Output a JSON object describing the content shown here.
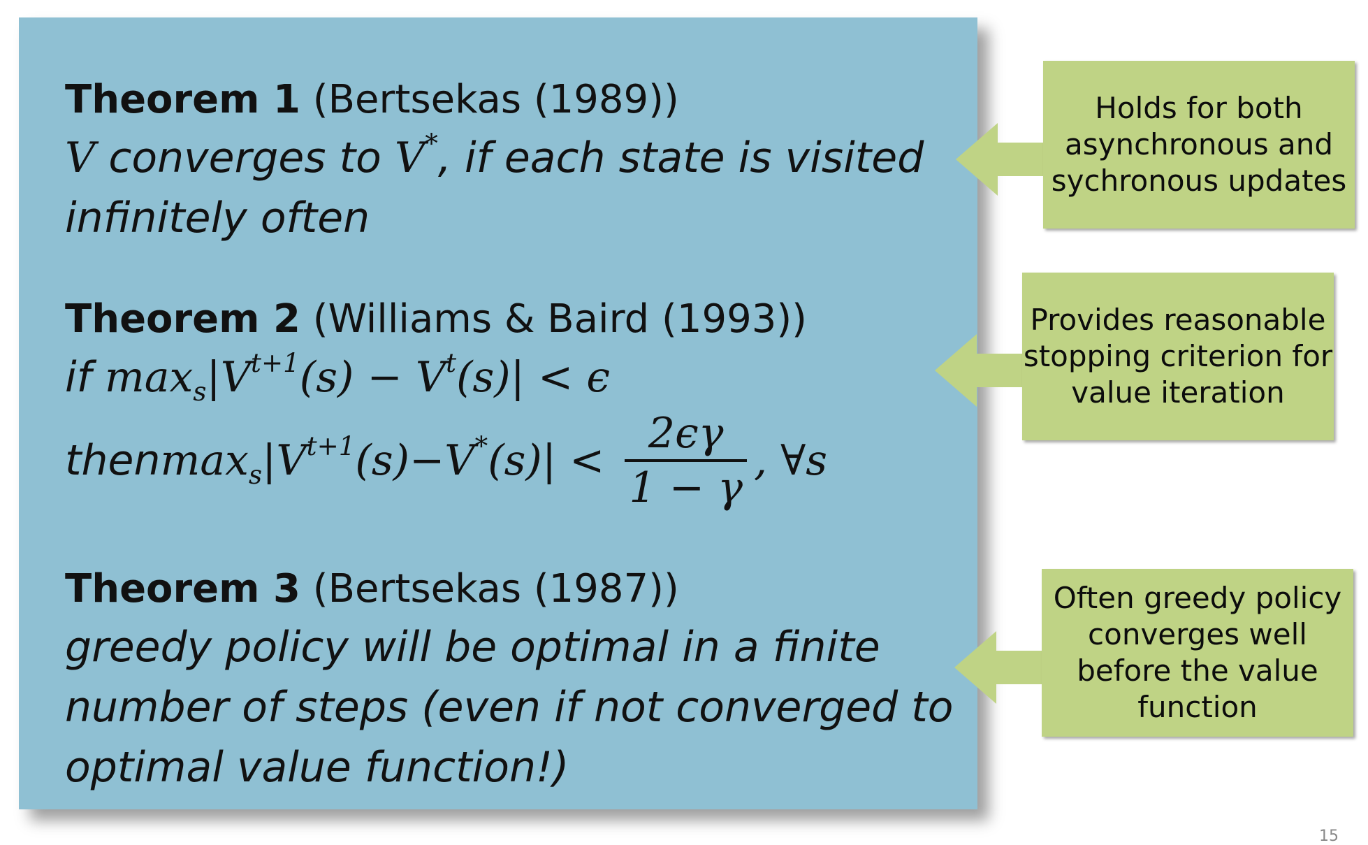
{
  "theorems": [
    {
      "label": "Theorem 1",
      "citation": "(Bertsekas (1989))",
      "statement": {
        "v": "V",
        "t1": " converges to ",
        "vstar": "V",
        "star": "*",
        "t2": ", if each state is visited infinitely often"
      }
    },
    {
      "label": "Theorem 2",
      "citation": "(Williams & Baird (1993))",
      "line_if": {
        "word": "if ",
        "max": "max",
        "sub": "s",
        "expr1": "|V",
        "sup1": "t+1",
        "expr2": "(s) − V",
        "sup2": "t",
        "expr3": "(s)| < ϵ"
      },
      "line_then": {
        "word": "then ",
        "max": "max",
        "sub": "s",
        "expr1": "|V",
        "sup1": "t+1",
        "expr2": "(s)−V",
        "sup2": "*",
        "expr3": "(s)| < ",
        "numerator": "2ϵγ",
        "denominator": "1 − γ",
        "tail": ", ∀s"
      }
    },
    {
      "label": "Theorem 3",
      "citation": "(Bertsekas (1987))",
      "statement": "greedy policy will be optimal in a finite number of steps (even if not converged to optimal value function!)"
    }
  ],
  "callouts": [
    "Holds for both asynchronous and sychronous updates",
    "Provides reasonable stopping criterion for value iteration",
    "Often greedy policy converges well before the value function"
  ],
  "colors": {
    "panel": "#8fc0d3",
    "callout": "#bfd385"
  },
  "page_number": "15"
}
